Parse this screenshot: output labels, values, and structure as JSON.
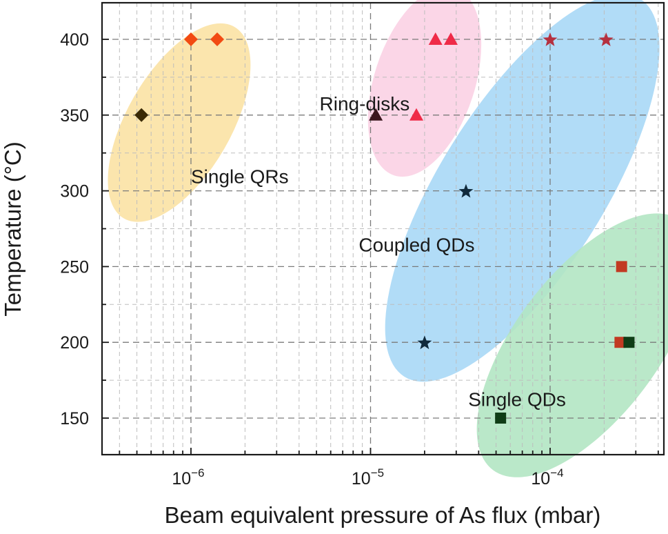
{
  "chart_data": {
    "type": "scatter",
    "title": "",
    "xlabel": "Beam equivalent pressure of As flux (mbar)",
    "ylabel": "Temperature (°C)",
    "x_scale": "log",
    "xlim": [
      3.5e-07,
      0.00042
    ],
    "ylim": [
      130,
      418
    ],
    "x_ticks": [
      {
        "value": 1e-06,
        "label": "10−6"
      },
      {
        "value": 1e-05,
        "label": "10−5"
      },
      {
        "value": 0.0001,
        "label": "10−4"
      }
    ],
    "y_ticks": [
      150,
      200,
      250,
      300,
      350,
      400
    ],
    "grid": true,
    "regions": [
      {
        "label": "Single QRs",
        "color": "#fbe2a4",
        "label_x": 1e-06,
        "label_y": 305
      },
      {
        "label": "Ring-disks",
        "color": "#fbd1e4",
        "label_x": 5.2e-06,
        "label_y": 353
      },
      {
        "label": "Coupled QDs",
        "color": "#a9d8f6",
        "label_x": 8.6e-06,
        "label_y": 260
      },
      {
        "label": "Single QDs",
        "color": "#b3e6c3",
        "label_x": 3.5e-05,
        "label_y": 158
      }
    ],
    "series": [
      {
        "marker": "diamond",
        "points": [
          {
            "x": 5.3e-07,
            "y": 350,
            "color": "#3a2a05"
          },
          {
            "x": 1e-06,
            "y": 400,
            "color": "#f24a12"
          },
          {
            "x": 1.4e-06,
            "y": 400,
            "color": "#f24a12"
          }
        ]
      },
      {
        "marker": "triangle",
        "points": [
          {
            "x": 1.07e-05,
            "y": 350,
            "color": "#3a161d"
          },
          {
            "x": 1.8e-05,
            "y": 350,
            "color": "#ef2b48"
          },
          {
            "x": 2.3e-05,
            "y": 400,
            "color": "#ef2b48"
          },
          {
            "x": 2.8e-05,
            "y": 400,
            "color": "#ef2b48"
          }
        ]
      },
      {
        "marker": "star",
        "points": [
          {
            "x": 2e-05,
            "y": 200,
            "color": "#102a3c"
          },
          {
            "x": 3.4e-05,
            "y": 300,
            "color": "#102a3c"
          },
          {
            "x": 0.0001,
            "y": 400,
            "color": "#b5303f"
          },
          {
            "x": 0.000205,
            "y": 400,
            "color": "#b5303f"
          }
        ]
      },
      {
        "marker": "square",
        "points": [
          {
            "x": 5.3e-05,
            "y": 150,
            "color": "#0f3d16"
          },
          {
            "x": 0.000245,
            "y": 200,
            "color": "#c23a22"
          },
          {
            "x": 0.000275,
            "y": 200,
            "color": "#0f3d16"
          },
          {
            "x": 0.00025,
            "y": 250,
            "color": "#c23a22"
          }
        ]
      }
    ]
  }
}
